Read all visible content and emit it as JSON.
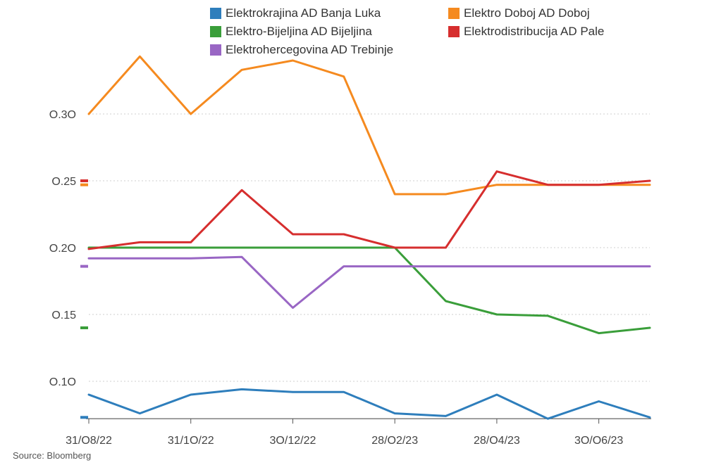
{
  "chart_data": {
    "type": "line",
    "title": "",
    "xlabel": "",
    "ylabel": "",
    "x": [
      "31/08/22",
      "30/09/22",
      "31/10/22",
      "30/11/22",
      "30/12/22",
      "31/01/23",
      "28/02/23",
      "31/03/23",
      "28/04/23",
      "31/05/23",
      "30/06/23",
      "31/07/23"
    ],
    "x_tick_labels": [
      "31/O8/22",
      "31/1O/22",
      "3O/12/22",
      "28/O2/23",
      "28/O4/23",
      "3O/O6/23"
    ],
    "x_tick_indices": [
      0,
      2,
      4,
      6,
      8,
      10
    ],
    "y_ticks": [
      0.1,
      0.15,
      0.2,
      0.25,
      0.3
    ],
    "y_tick_labels": [
      "O.1O",
      "O.15",
      "O.2O",
      "O.25",
      "O.3O"
    ],
    "ylim": [
      0.072,
      0.36
    ],
    "grid": true,
    "legend_position": "top",
    "series": [
      {
        "name": "Elektrokrajina AD Banja Luka",
        "color": "#2e7ebc",
        "values": [
          0.09,
          0.076,
          0.09,
          0.094,
          0.092,
          0.092,
          0.076,
          0.074,
          0.09,
          0.072,
          0.085,
          0.073
        ]
      },
      {
        "name": "Elektro Doboj AD Doboj",
        "color": "#f58a1f",
        "values": [
          0.3,
          0.343,
          0.3,
          0.333,
          0.34,
          0.328,
          0.24,
          0.24,
          0.247,
          0.247,
          0.247,
          0.247
        ]
      },
      {
        "name": "Elektro-Bijeljina AD Bijeljina",
        "color": "#3a9e3a",
        "values": [
          0.2,
          0.2,
          0.2,
          0.2,
          0.2,
          0.2,
          0.2,
          0.16,
          0.15,
          0.149,
          0.136,
          0.14
        ]
      },
      {
        "name": "Elektrodistribucija AD Pale",
        "color": "#d62e2e",
        "values": [
          0.199,
          0.204,
          0.204,
          0.243,
          0.21,
          0.21,
          0.2,
          0.2,
          0.257,
          0.247,
          0.247,
          0.25
        ]
      },
      {
        "name": "Elektrohercegovina AD Trebinje",
        "color": "#9966c4",
        "values": [
          0.192,
          0.192,
          0.192,
          0.193,
          0.155,
          0.186,
          0.186,
          0.186,
          0.186,
          0.186,
          0.186,
          0.186
        ]
      }
    ]
  },
  "source": "Source: Bloomberg"
}
